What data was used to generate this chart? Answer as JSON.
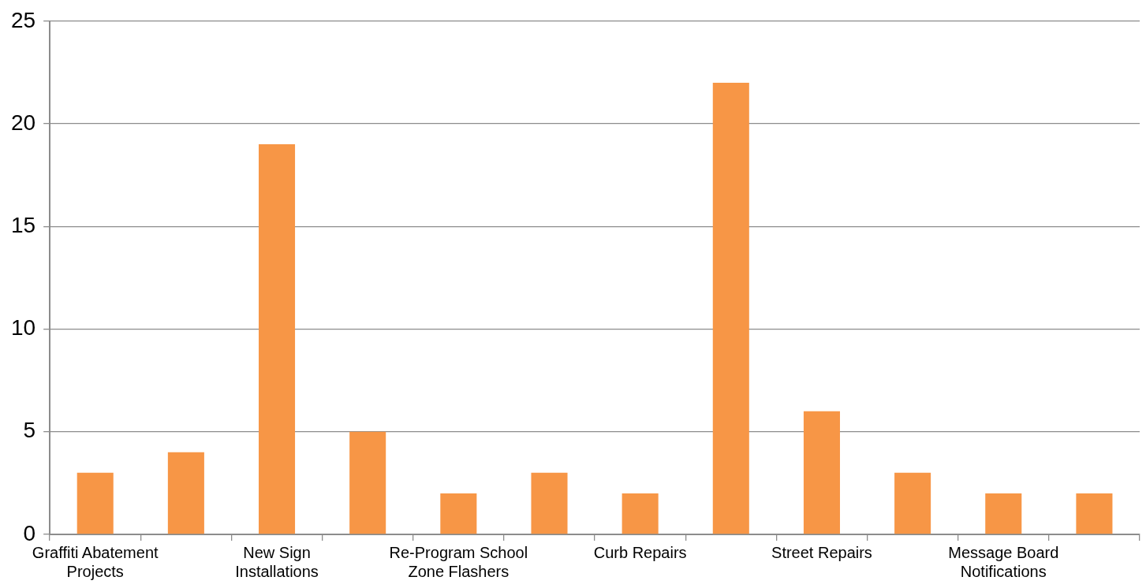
{
  "chart_data": {
    "type": "bar",
    "categories": [
      "Graffiti Abatement Projects",
      null,
      "New Sign Installations",
      null,
      "Re-Program School Zone Flashers",
      null,
      "Curb Repairs",
      null,
      "Street Repairs",
      null,
      "Message Board Notifications",
      null
    ],
    "values": [
      3,
      4,
      19,
      5,
      2,
      3,
      2,
      22,
      6,
      3,
      2,
      2
    ],
    "color": "#f79646",
    "ylim": [
      0,
      25
    ],
    "yticks": [
      0,
      5,
      10,
      15,
      20,
      25
    ],
    "grid": "y",
    "legend": false
  }
}
